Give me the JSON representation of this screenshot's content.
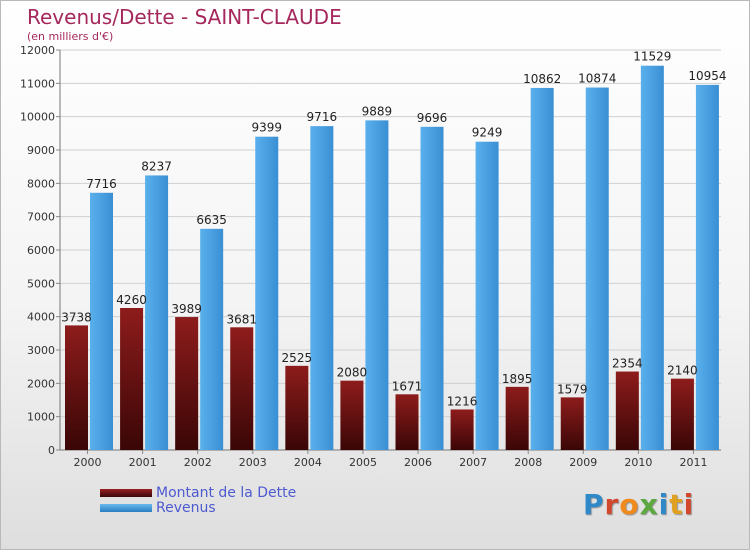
{
  "title": "Revenus/Dette - SAINT-CLAUDE",
  "subtitle": "(en milliers d'€)",
  "logo": [
    "P",
    "r",
    "o",
    "x",
    "i",
    "t",
    "i"
  ],
  "colors": {
    "debt": "#7a1414",
    "revenue": "#4aa0e0",
    "title": "#a5285c",
    "legend_text": "#4d5ad0"
  },
  "chart_data": {
    "type": "bar",
    "categories": [
      "2000",
      "2001",
      "2002",
      "2003",
      "2004",
      "2005",
      "2006",
      "2007",
      "2008",
      "2009",
      "2010",
      "2011"
    ],
    "series": [
      {
        "name": "Montant de la Dette",
        "values": [
          3738,
          4260,
          3989,
          3681,
          2525,
          2080,
          1671,
          1216,
          1895,
          1579,
          2354,
          2140
        ]
      },
      {
        "name": "Revenus",
        "values": [
          7716,
          8237,
          6635,
          9399,
          9716,
          9889,
          9696,
          9249,
          10862,
          10874,
          11529,
          10954
        ]
      }
    ],
    "ylim": [
      0,
      12000
    ],
    "yticks": [
      0,
      1000,
      2000,
      3000,
      4000,
      5000,
      6000,
      7000,
      8000,
      9000,
      10000,
      11000,
      12000
    ],
    "grid": true,
    "legend_position": "bottom-left"
  }
}
